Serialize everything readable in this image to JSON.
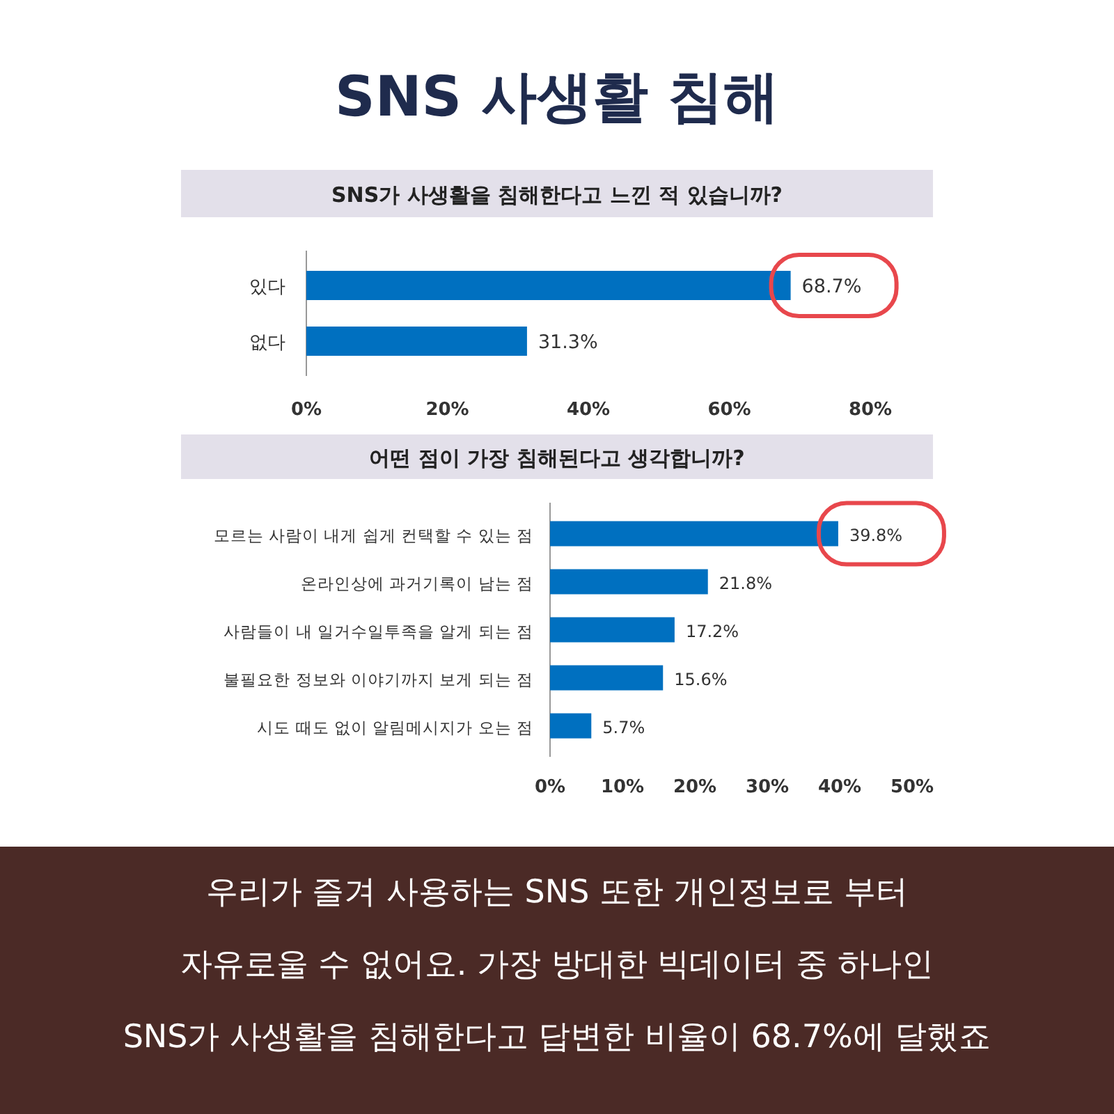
{
  "chart_data": [
    {
      "type": "bar",
      "orientation": "horizontal",
      "title": "SNS 사생활 침해",
      "subtitle": "SNS가 사생활을 침해한다고 느낀 적 있습니까?",
      "categories": [
        "있다",
        "없다"
      ],
      "values": [
        68.7,
        31.3
      ],
      "color": "#0070c0",
      "value_labels": [
        "68.7%",
        "31.3%"
      ],
      "xlim": [
        0,
        80
      ],
      "xticks": [
        {
          "value": 0,
          "label": "0%"
        },
        {
          "value": 20,
          "label": "20%"
        },
        {
          "value": 40,
          "label": "40%"
        },
        {
          "value": 60,
          "label": "60%"
        },
        {
          "value": 80,
          "label": "80%"
        }
      ]
    },
    {
      "type": "bar",
      "orientation": "horizontal",
      "title": "어떤 점이 가장 침해된다고 생각합니까?",
      "categories": [
        "모르는 사람이 내게 쉽게 컨택할 수 있는 점",
        "온라인상에 과거기록이 남는 점",
        "사람들이 내 일거수일투족을 알게 되는 점",
        "불필요한 정보와 이야기까지 보게 되는 점",
        "시도 때도 없이 알림메시지가 오는 점"
      ],
      "values": [
        39.8,
        21.8,
        17.2,
        15.6,
        5.7
      ],
      "color": "#0070c0",
      "value_labels": [
        "39.8%",
        "21.8%",
        "17.2%",
        "15.6%",
        "5.7%"
      ],
      "xlim": [
        0,
        50
      ],
      "xticks": [
        {
          "value": 0,
          "label": "0%"
        },
        {
          "value": 10,
          "label": "10%"
        },
        {
          "value": 20,
          "label": "20%"
        },
        {
          "value": 30,
          "label": "30%"
        },
        {
          "value": 40,
          "label": "40%"
        },
        {
          "value": 50,
          "label": "50%"
        }
      ],
      "annotations": [
        "우리가 즐겨 사용하는 SNS 또한 개인정보로 부터",
        "자유로울 수 없어요. 가장 방대한 빅데이터 중 하나인",
        "SNS가 사생활을 침해한다고 답변한 비율이 68.7%에 달했죠"
      ]
    }
  ]
}
